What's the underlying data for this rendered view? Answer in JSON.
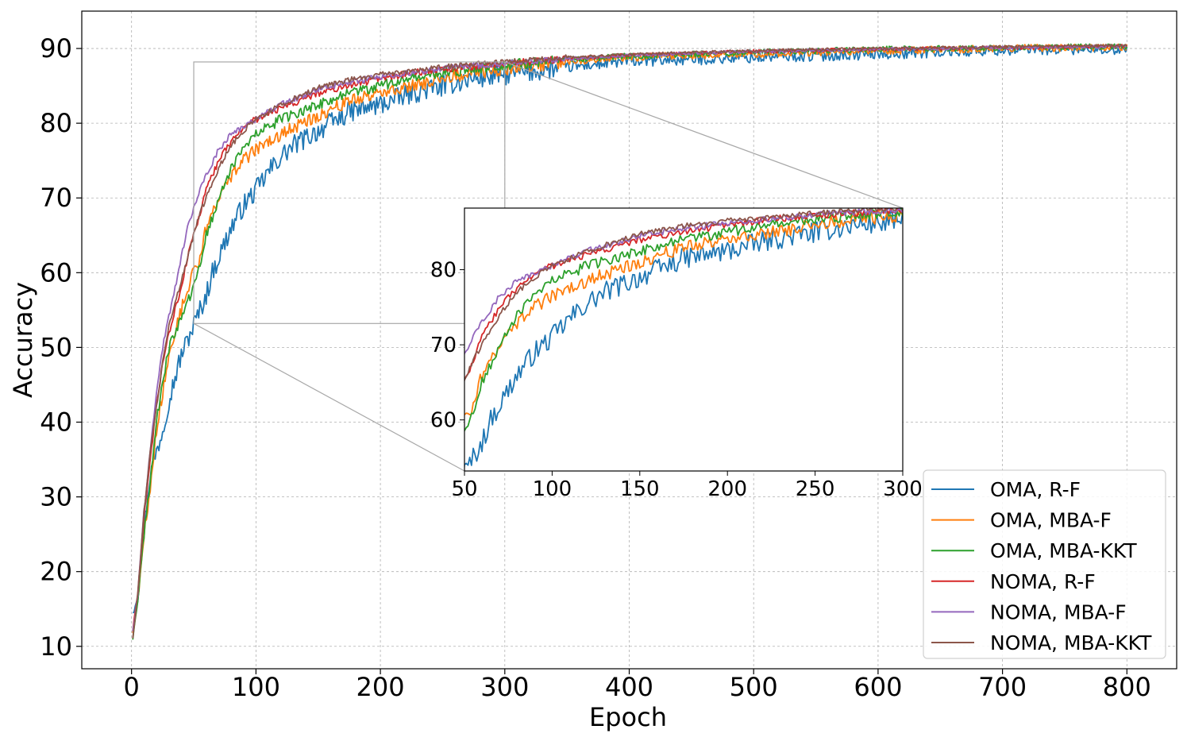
{
  "chart_data": {
    "type": "line",
    "title": "",
    "xlabel": "Epoch",
    "ylabel": "Accuracy",
    "xlim": [
      -40,
      840
    ],
    "ylim": [
      7,
      95
    ],
    "xticks": [
      0,
      100,
      200,
      300,
      400,
      500,
      600,
      700,
      800
    ],
    "yticks": [
      10,
      20,
      30,
      40,
      50,
      60,
      70,
      80,
      90
    ],
    "grid": true,
    "legend_position": "lower-right",
    "x_start": 1,
    "x_end": 800,
    "series": [
      {
        "name": "OMA, R-F",
        "color": "#1f77b4",
        "anchors": [
          [
            1,
            15
          ],
          [
            5,
            17
          ],
          [
            10,
            26
          ],
          [
            15,
            33
          ],
          [
            20,
            36
          ],
          [
            25,
            39
          ],
          [
            30,
            43
          ],
          [
            35,
            46
          ],
          [
            40,
            49
          ],
          [
            45,
            51
          ],
          [
            50,
            53
          ],
          [
            55,
            55
          ],
          [
            60,
            57
          ],
          [
            65,
            60
          ],
          [
            70,
            62
          ],
          [
            80,
            66
          ],
          [
            90,
            69
          ],
          [
            100,
            71
          ],
          [
            110,
            73.5
          ],
          [
            120,
            75.5
          ],
          [
            130,
            77
          ],
          [
            150,
            79
          ],
          [
            175,
            81.5
          ],
          [
            200,
            82.5
          ],
          [
            225,
            84
          ],
          [
            250,
            85
          ],
          [
            275,
            86
          ],
          [
            300,
            86.5
          ],
          [
            350,
            87.5
          ],
          [
            400,
            88.3
          ],
          [
            500,
            88.8
          ],
          [
            600,
            89.3
          ],
          [
            700,
            89.8
          ],
          [
            800,
            90
          ]
        ],
        "noise": 1.4
      },
      {
        "name": "OMA, MBA-F",
        "color": "#ff7f0e",
        "anchors": [
          [
            1,
            12
          ],
          [
            5,
            16
          ],
          [
            10,
            25
          ],
          [
            15,
            31
          ],
          [
            20,
            39
          ],
          [
            25,
            44
          ],
          [
            30,
            49
          ],
          [
            35,
            52
          ],
          [
            40,
            55
          ],
          [
            45,
            58
          ],
          [
            50,
            60
          ],
          [
            55,
            62
          ],
          [
            60,
            66
          ],
          [
            70,
            70
          ],
          [
            80,
            73
          ],
          [
            90,
            75
          ],
          [
            100,
            76.5
          ],
          [
            120,
            78.5
          ],
          [
            150,
            81
          ],
          [
            175,
            83
          ],
          [
            200,
            84
          ],
          [
            225,
            85
          ],
          [
            250,
            86
          ],
          [
            275,
            86.8
          ],
          [
            300,
            87.3
          ],
          [
            350,
            88.3
          ],
          [
            400,
            88.8
          ],
          [
            500,
            89.3
          ],
          [
            600,
            89.7
          ],
          [
            700,
            90
          ],
          [
            800,
            90.2
          ]
        ],
        "noise": 0.9
      },
      {
        "name": "OMA, MBA-KKT",
        "color": "#2ca02c",
        "anchors": [
          [
            1,
            11
          ],
          [
            5,
            16
          ],
          [
            10,
            25
          ],
          [
            15,
            32
          ],
          [
            20,
            40
          ],
          [
            25,
            45
          ],
          [
            30,
            50
          ],
          [
            35,
            52
          ],
          [
            40,
            54
          ],
          [
            45,
            56
          ],
          [
            50,
            58
          ],
          [
            55,
            61
          ],
          [
            60,
            65
          ],
          [
            70,
            70
          ],
          [
            80,
            74
          ],
          [
            90,
            76.5
          ],
          [
            100,
            78.5
          ],
          [
            120,
            80.5
          ],
          [
            150,
            82.5
          ],
          [
            175,
            84
          ],
          [
            200,
            85
          ],
          [
            225,
            86
          ],
          [
            250,
            86.7
          ],
          [
            275,
            87.3
          ],
          [
            300,
            87.8
          ],
          [
            350,
            88.5
          ],
          [
            400,
            89
          ],
          [
            500,
            89.5
          ],
          [
            600,
            89.9
          ],
          [
            700,
            90.1
          ],
          [
            800,
            90.3
          ]
        ],
        "noise": 0.7
      },
      {
        "name": "NOMA, R-F",
        "color": "#d62728",
        "anchors": [
          [
            1,
            12
          ],
          [
            5,
            17
          ],
          [
            10,
            27
          ],
          [
            15,
            35
          ],
          [
            20,
            42
          ],
          [
            25,
            48
          ],
          [
            30,
            52
          ],
          [
            35,
            55
          ],
          [
            40,
            58
          ],
          [
            45,
            62
          ],
          [
            50,
            65
          ],
          [
            55,
            68
          ],
          [
            60,
            71
          ],
          [
            70,
            75
          ],
          [
            80,
            77.5
          ],
          [
            90,
            79.5
          ],
          [
            100,
            80.5
          ],
          [
            120,
            82
          ],
          [
            150,
            84
          ],
          [
            175,
            85
          ],
          [
            200,
            86
          ],
          [
            225,
            86.7
          ],
          [
            250,
            87.2
          ],
          [
            275,
            87.6
          ],
          [
            300,
            88
          ],
          [
            350,
            88.6
          ],
          [
            400,
            89.1
          ],
          [
            500,
            89.6
          ],
          [
            600,
            89.9
          ],
          [
            700,
            90.1
          ],
          [
            800,
            90.3
          ]
        ],
        "noise": 0.45
      },
      {
        "name": "NOMA, MBA-F",
        "color": "#9467bd",
        "anchors": [
          [
            1,
            12
          ],
          [
            5,
            17
          ],
          [
            10,
            28
          ],
          [
            15,
            36
          ],
          [
            20,
            44
          ],
          [
            25,
            50
          ],
          [
            30,
            54
          ],
          [
            35,
            58
          ],
          [
            40,
            62
          ],
          [
            45,
            66
          ],
          [
            50,
            68.5
          ],
          [
            55,
            71
          ],
          [
            60,
            73
          ],
          [
            70,
            76.5
          ],
          [
            80,
            78.5
          ],
          [
            90,
            79.5
          ],
          [
            100,
            80.5
          ],
          [
            120,
            82.5
          ],
          [
            150,
            84.5
          ],
          [
            175,
            85.5
          ],
          [
            200,
            86.2
          ],
          [
            225,
            86.8
          ],
          [
            250,
            87.3
          ],
          [
            275,
            87.7
          ],
          [
            300,
            88
          ],
          [
            350,
            88.6
          ],
          [
            400,
            89.1
          ],
          [
            500,
            89.6
          ],
          [
            600,
            89.9
          ],
          [
            700,
            90.1
          ],
          [
            800,
            90.3
          ]
        ],
        "noise": 0.4
      },
      {
        "name": "NOMA, MBA-KKT",
        "color": "#8c564b",
        "anchors": [
          [
            1,
            11
          ],
          [
            5,
            17
          ],
          [
            10,
            28
          ],
          [
            15,
            36
          ],
          [
            20,
            42
          ],
          [
            25,
            48
          ],
          [
            30,
            53
          ],
          [
            35,
            56
          ],
          [
            40,
            59
          ],
          [
            45,
            62
          ],
          [
            50,
            65
          ],
          [
            55,
            68
          ],
          [
            60,
            70
          ],
          [
            70,
            74
          ],
          [
            80,
            77
          ],
          [
            90,
            79
          ],
          [
            100,
            80.5
          ],
          [
            120,
            82.5
          ],
          [
            150,
            84.8
          ],
          [
            175,
            85.8
          ],
          [
            200,
            86.5
          ],
          [
            225,
            87
          ],
          [
            250,
            87.5
          ],
          [
            275,
            87.9
          ],
          [
            300,
            88.2
          ],
          [
            350,
            88.8
          ],
          [
            400,
            89.2
          ],
          [
            500,
            89.7
          ],
          [
            600,
            90
          ],
          [
            700,
            90.2
          ],
          [
            800,
            90.4
          ]
        ],
        "noise": 0.35
      }
    ],
    "inset": {
      "xlim": [
        50,
        300
      ],
      "ylim": [
        53.2,
        88.2
      ],
      "xticks": [
        50,
        100,
        150,
        200,
        250,
        300
      ],
      "yticks": [
        60,
        70,
        80
      ]
    }
  }
}
